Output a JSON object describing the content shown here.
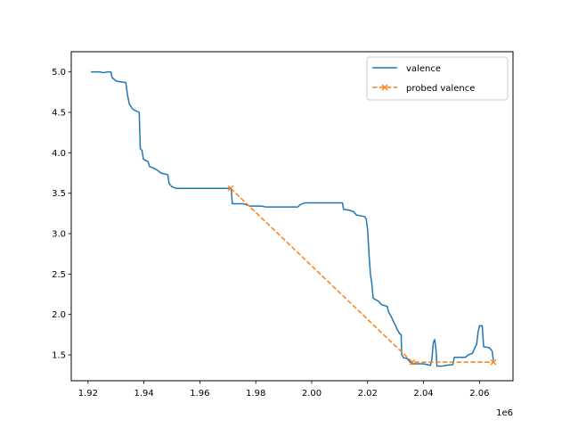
{
  "chart_data": {
    "type": "line",
    "title": "",
    "xlabel": "",
    "ylabel": "",
    "x_offset_label": "1e6",
    "xlim": [
      1914000,
      2072000
    ],
    "ylim": [
      1.18,
      5.25
    ],
    "x_ticks": [
      1920000,
      1940000,
      1960000,
      1980000,
      2000000,
      2020000,
      2040000,
      2060000
    ],
    "x_tick_labels": [
      "1.92",
      "1.94",
      "1.96",
      "1.98",
      "2.00",
      "2.02",
      "2.04",
      "2.06"
    ],
    "y_ticks": [
      1.5,
      2.0,
      2.5,
      3.0,
      3.5,
      4.0,
      4.5,
      5.0
    ],
    "y_tick_labels": [
      "1.5",
      "2.0",
      "2.5",
      "3.0",
      "3.5",
      "4.0",
      "4.5",
      "5.0"
    ],
    "grid": false,
    "legend_position": "upper right",
    "colors": {
      "valence": "#1f77b4",
      "probed": "#ff7f0e"
    },
    "series": [
      {
        "name": "valence",
        "style": "solid",
        "points": [
          [
            1921000,
            5.0
          ],
          [
            1924500,
            5.0
          ],
          [
            1925500,
            4.99
          ],
          [
            1927000,
            5.0
          ],
          [
            1928200,
            5.0
          ],
          [
            1928600,
            4.93
          ],
          [
            1930000,
            4.89
          ],
          [
            1931000,
            4.88
          ],
          [
            1933500,
            4.87
          ],
          [
            1934200,
            4.7
          ],
          [
            1934800,
            4.6
          ],
          [
            1936000,
            4.54
          ],
          [
            1937000,
            4.52
          ],
          [
            1938300,
            4.5
          ],
          [
            1938700,
            4.05
          ],
          [
            1939300,
            4.03
          ],
          [
            1939800,
            3.92
          ],
          [
            1941500,
            3.89
          ],
          [
            1942000,
            3.83
          ],
          [
            1943500,
            3.81
          ],
          [
            1945000,
            3.78
          ],
          [
            1946000,
            3.75
          ],
          [
            1948500,
            3.73
          ],
          [
            1949000,
            3.62
          ],
          [
            1950000,
            3.58
          ],
          [
            1951500,
            3.56
          ],
          [
            1960000,
            3.56
          ],
          [
            1971200,
            3.56
          ],
          [
            1971600,
            3.37
          ],
          [
            1975500,
            3.37
          ],
          [
            1978000,
            3.34
          ],
          [
            1982000,
            3.34
          ],
          [
            1983500,
            3.33
          ],
          [
            1995000,
            3.33
          ],
          [
            1996000,
            3.36
          ],
          [
            1997500,
            3.38
          ],
          [
            2011000,
            3.38
          ],
          [
            2011400,
            3.3
          ],
          [
            2013500,
            3.29
          ],
          [
            2015000,
            3.27
          ],
          [
            2016000,
            3.23
          ],
          [
            2019000,
            3.21
          ],
          [
            2019500,
            3.18
          ],
          [
            2020000,
            3.05
          ],
          [
            2020500,
            2.75
          ],
          [
            2021000,
            2.5
          ],
          [
            2021500,
            2.38
          ],
          [
            2022000,
            2.2
          ],
          [
            2024000,
            2.16
          ],
          [
            2025000,
            2.12
          ],
          [
            2027000,
            2.1
          ],
          [
            2027500,
            2.03
          ],
          [
            2028500,
            1.97
          ],
          [
            2029000,
            1.93
          ],
          [
            2030000,
            1.86
          ],
          [
            2030500,
            1.82
          ],
          [
            2031500,
            1.76
          ],
          [
            2032000,
            1.75
          ],
          [
            2032200,
            1.5
          ],
          [
            2033000,
            1.46
          ],
          [
            2034000,
            1.46
          ],
          [
            2035000,
            1.42
          ],
          [
            2035800,
            1.39
          ],
          [
            2040000,
            1.39
          ],
          [
            2042500,
            1.37
          ],
          [
            2043000,
            1.45
          ],
          [
            2043500,
            1.65
          ],
          [
            2044000,
            1.69
          ],
          [
            2044500,
            1.55
          ],
          [
            2044800,
            1.36
          ],
          [
            2046500,
            1.36
          ],
          [
            2048000,
            1.37
          ],
          [
            2050500,
            1.38
          ],
          [
            2051000,
            1.47
          ],
          [
            2055000,
            1.47
          ],
          [
            2056000,
            1.5
          ],
          [
            2057500,
            1.52
          ],
          [
            2058500,
            1.6
          ],
          [
            2059000,
            1.63
          ],
          [
            2059500,
            1.78
          ],
          [
            2060000,
            1.86
          ],
          [
            2061000,
            1.86
          ],
          [
            2061500,
            1.6
          ],
          [
            2063500,
            1.59
          ],
          [
            2064500,
            1.55
          ],
          [
            2065000,
            1.43
          ]
        ]
      },
      {
        "name": "probed valence",
        "style": "dashed",
        "marker": "x",
        "points": [
          [
            1971000,
            3.56
          ],
          [
            2036000,
            1.41
          ],
          [
            2065000,
            1.41
          ]
        ]
      }
    ]
  }
}
